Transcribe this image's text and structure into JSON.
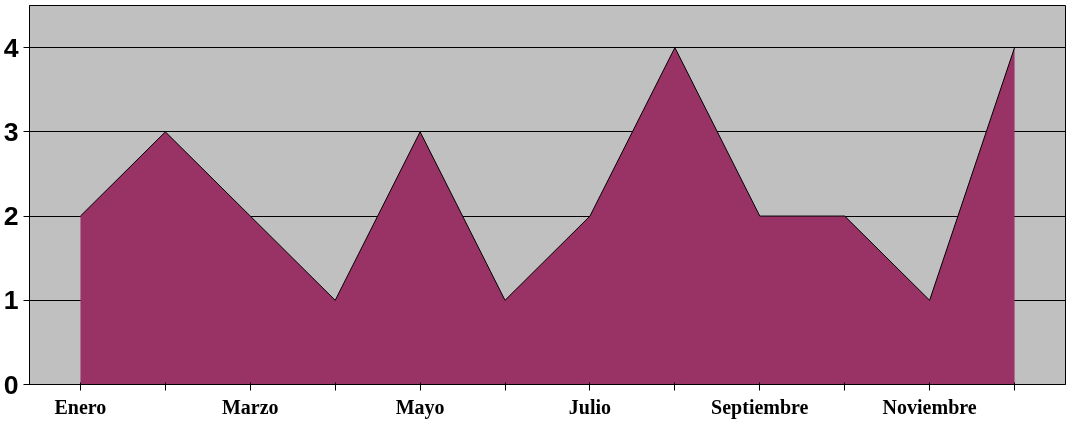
{
  "chart_data": {
    "type": "area",
    "categories": [
      "Enero",
      null,
      "Marzo",
      null,
      "Mayo",
      null,
      "Julio",
      null,
      "Septiembre",
      null,
      "Noviembre",
      null
    ],
    "series": [
      {
        "color": "#993366",
        "values": [
          2,
          3,
          2,
          1,
          3,
          1,
          2,
          4,
          2,
          2,
          1,
          4
        ]
      }
    ],
    "ylim": [
      0,
      4.5
    ],
    "yticks": [
      0,
      1,
      2,
      3,
      4
    ],
    "grid": "y"
  }
}
